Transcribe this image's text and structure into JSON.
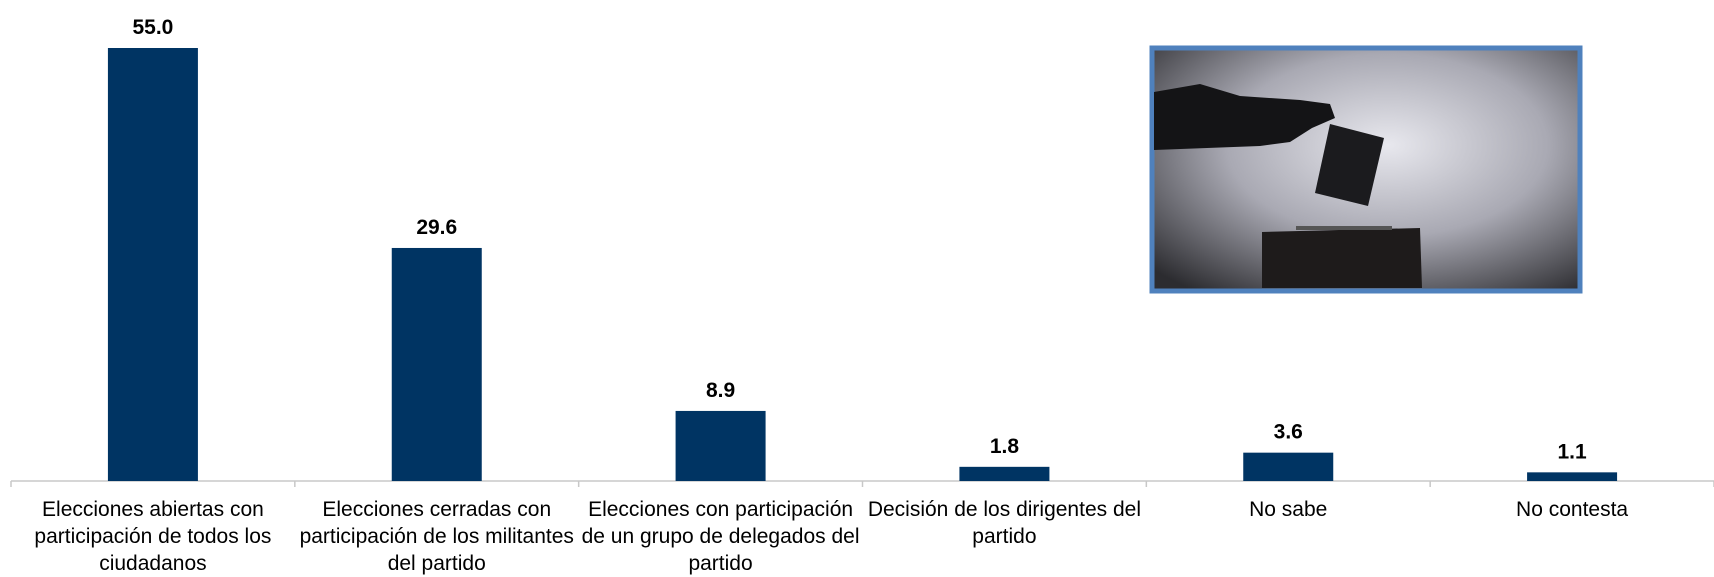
{
  "chart_data": {
    "type": "bar",
    "categories": [
      "Elecciones abiertas con participación de todos los ciudadanos",
      "Elecciones cerradas con participación de los militantes del partido",
      "Elecciones con participación de un grupo de delegados del partido",
      "Decisión de los dirigentes del partido",
      "No sabe",
      "No contesta"
    ],
    "values": [
      55.0,
      29.6,
      8.9,
      1.8,
      3.6,
      1.1
    ],
    "value_labels": [
      "55.0",
      "29.6",
      "8.9",
      "1.8",
      "3.6",
      "1.1"
    ],
    "color": "#003463"
  }
}
